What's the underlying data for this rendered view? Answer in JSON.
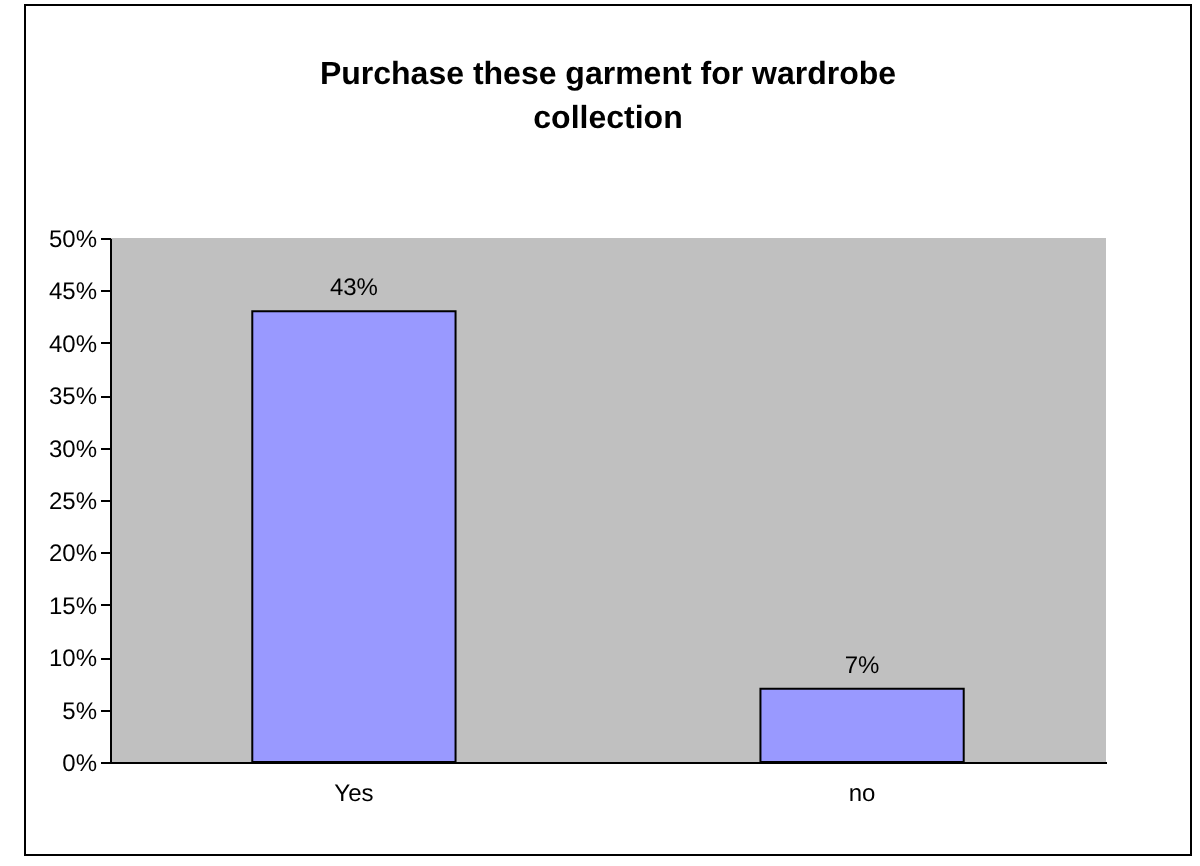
{
  "chart_data": {
    "type": "bar",
    "title": "Purchase these garment for wardrobe collection",
    "categories": [
      "Yes",
      "no"
    ],
    "values": [
      43,
      7
    ],
    "value_labels": [
      "43%",
      "7%"
    ],
    "color": "#9999ff",
    "ylim": [
      0,
      50
    ],
    "yticks": [
      {
        "value": 0,
        "label": "0%"
      },
      {
        "value": 5,
        "label": "5%"
      },
      {
        "value": 10,
        "label": "10%"
      },
      {
        "value": 15,
        "label": "15%"
      },
      {
        "value": 20,
        "label": "20%"
      },
      {
        "value": 25,
        "label": "25%"
      },
      {
        "value": 30,
        "label": "30%"
      },
      {
        "value": 35,
        "label": "35%"
      },
      {
        "value": 40,
        "label": "40%"
      },
      {
        "value": 45,
        "label": "45%"
      },
      {
        "value": 50,
        "label": "50%"
      }
    ],
    "grid": false
  }
}
